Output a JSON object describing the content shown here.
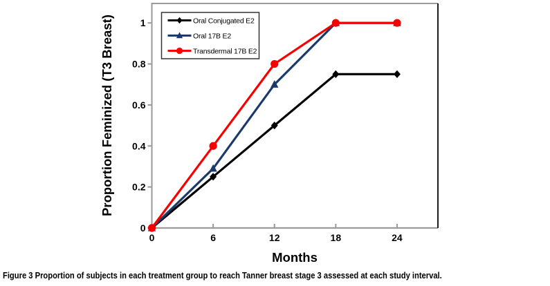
{
  "figure": {
    "caption_label": "Figure 3",
    "caption_text": "Proportion of subjects in each treatment group to reach Tanner breast stage 3 assessed at each study interval."
  },
  "chart_data": {
    "type": "line",
    "x": [
      0,
      6,
      12,
      18,
      24
    ],
    "series": [
      {
        "name": "Oral Conjugated E2",
        "marker": "diamond-icon",
        "color": "#000000",
        "values": [
          0,
          0.25,
          0.5,
          0.75,
          0.75
        ]
      },
      {
        "name": "Oral 17B E2",
        "marker": "triangle-icon",
        "color": "#1b3a6b",
        "values": [
          0,
          0.29,
          0.7,
          1,
          1
        ]
      },
      {
        "name": "Transdermal 17B E2",
        "marker": "circle-icon",
        "color": "#f70000",
        "values": [
          0,
          0.4,
          0.8,
          1,
          1
        ]
      }
    ],
    "title": "",
    "xlabel": "Months",
    "ylabel": "Proportion Feminized (T3 Breast)",
    "xticks": [
      0,
      6,
      12,
      18,
      24
    ],
    "yticks": [
      0,
      0.2,
      0.4,
      0.6,
      0.8,
      1
    ],
    "ytick_labels": [
      "0",
      "0.2",
      "0.4",
      "0.6",
      "0.8",
      "1"
    ],
    "xlim": [
      0,
      28
    ],
    "ylim": [
      0,
      1.095
    ],
    "grid": false,
    "legend_position": "top-left",
    "frame_color": "#9a9a9a",
    "frame_right_color": "#1a1a1a",
    "tick_color": "#9a9a9a"
  }
}
